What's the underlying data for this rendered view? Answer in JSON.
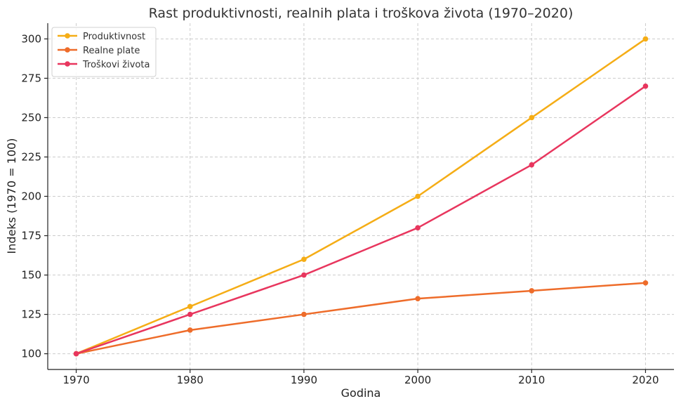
{
  "chart_data": {
    "type": "line",
    "title": "Rast produktivnosti, realnih plata i troškova života (1970–2020)",
    "xlabel": "Godina",
    "ylabel": "Indeks (1970 = 100)",
    "x": [
      1970,
      1980,
      1990,
      2000,
      2010,
      2020
    ],
    "x_ticks": [
      "1970",
      "1980",
      "1990",
      "2000",
      "2010",
      "2020"
    ],
    "xlim": [
      1967.5,
      2022.5
    ],
    "ylim": [
      90,
      310
    ],
    "y_ticks": [
      100,
      125,
      150,
      175,
      200,
      225,
      250,
      275,
      300
    ],
    "grid": true,
    "legend_position": "top-left",
    "series": [
      {
        "name": "Produktivnost",
        "color": "#f5ad16",
        "values": [
          100,
          130,
          160,
          200,
          250,
          300
        ]
      },
      {
        "name": "Realne plate",
        "color": "#ee6c2a",
        "values": [
          100,
          115,
          125,
          135,
          140,
          145
        ]
      },
      {
        "name": "Troškovi života",
        "color": "#e8365e",
        "values": [
          100,
          125,
          150,
          180,
          220,
          270
        ]
      }
    ]
  }
}
